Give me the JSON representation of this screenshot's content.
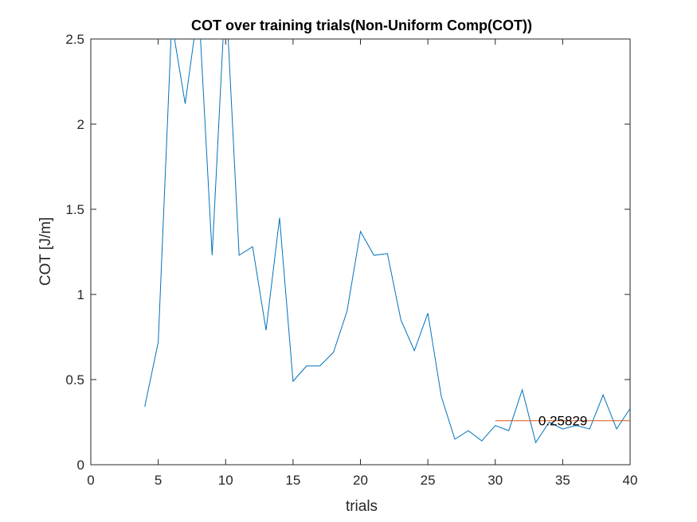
{
  "chart_data": {
    "type": "line",
    "title": "COT over training trials(Non-Uniform Comp(COT))",
    "xlabel": "trials",
    "ylabel": "COT [J/m]",
    "xlim": [
      0,
      40
    ],
    "ylim": [
      0,
      2.5
    ],
    "xticks": [
      0,
      5,
      10,
      15,
      20,
      25,
      30,
      35,
      40
    ],
    "xtick_labels": [
      "0",
      "5",
      "10",
      "15",
      "20",
      "25",
      "30",
      "35",
      "40"
    ],
    "yticks": [
      0,
      0.5,
      1,
      1.5,
      2,
      2.5
    ],
    "ytick_labels": [
      "0",
      "0.5",
      "1",
      "1.5",
      "2",
      "2.5"
    ],
    "grid": false,
    "series": [
      {
        "color": "#0072BD",
        "x": [
          4,
          5,
          6,
          7,
          8,
          9,
          10,
          11,
          12,
          13,
          14,
          15,
          16,
          17,
          18,
          19,
          20,
          21,
          22,
          23,
          24,
          25,
          26,
          27,
          28,
          29,
          30,
          31,
          32,
          33,
          34,
          35,
          36,
          37,
          38,
          39,
          40
        ],
        "y": [
          0.34,
          0.72,
          2.6,
          2.12,
          2.7,
          1.23,
          2.8,
          1.23,
          1.28,
          0.79,
          1.45,
          0.49,
          0.58,
          0.58,
          0.66,
          0.9,
          1.37,
          1.23,
          1.24,
          0.85,
          0.67,
          0.89,
          0.4,
          0.15,
          0.2,
          0.14,
          0.23,
          0.2,
          0.44,
          0.13,
          0.25,
          0.21,
          0.23,
          0.21,
          0.41,
          0.21,
          0.33
        ]
      },
      {
        "color": "#D95319",
        "x": [
          30,
          40
        ],
        "y": [
          0.25829,
          0.25829
        ]
      }
    ],
    "annotations": [
      {
        "text": "0.25829",
        "x": 33.2,
        "y": 0.25829
      }
    ]
  }
}
